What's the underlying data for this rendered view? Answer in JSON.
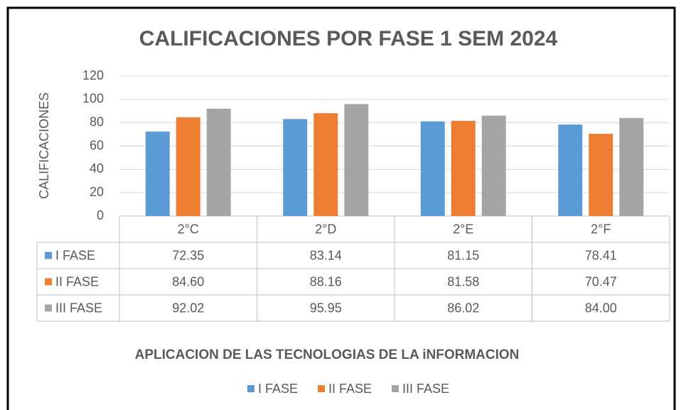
{
  "chart_data": {
    "type": "bar",
    "title": "CALIFICACIONES POR FASE 1 SEM 2024",
    "y_label": "CALIFICACIONES",
    "x_label": "APLICACION DE LAS TECNOLOGIAS DE LA iNFORMACION",
    "categories": [
      "2°C",
      "2°D",
      "2°E",
      "2°F"
    ],
    "series": [
      {
        "name": "I FASE",
        "color": "#5b9bd5",
        "values": [
          72.35,
          83.14,
          81.15,
          78.41
        ],
        "value_labels": [
          "72.35",
          "83.14",
          "81.15",
          "78.41"
        ]
      },
      {
        "name": "II FASE",
        "color": "#ed7d31",
        "values": [
          84.6,
          88.16,
          81.58,
          70.47
        ],
        "value_labels": [
          "84.60",
          "88.16",
          "81.58",
          "70.47"
        ]
      },
      {
        "name": "III FASE",
        "color": "#a5a5a5",
        "values": [
          92.02,
          95.95,
          86.02,
          84
        ],
        "value_labels": [
          "92.02",
          "95.95",
          "86.02",
          "84.00"
        ]
      }
    ],
    "ylim": [
      0,
      120
    ],
    "yticks": [
      0,
      20,
      40,
      60,
      80,
      100,
      120
    ],
    "grid": true,
    "legend": "bottom"
  }
}
